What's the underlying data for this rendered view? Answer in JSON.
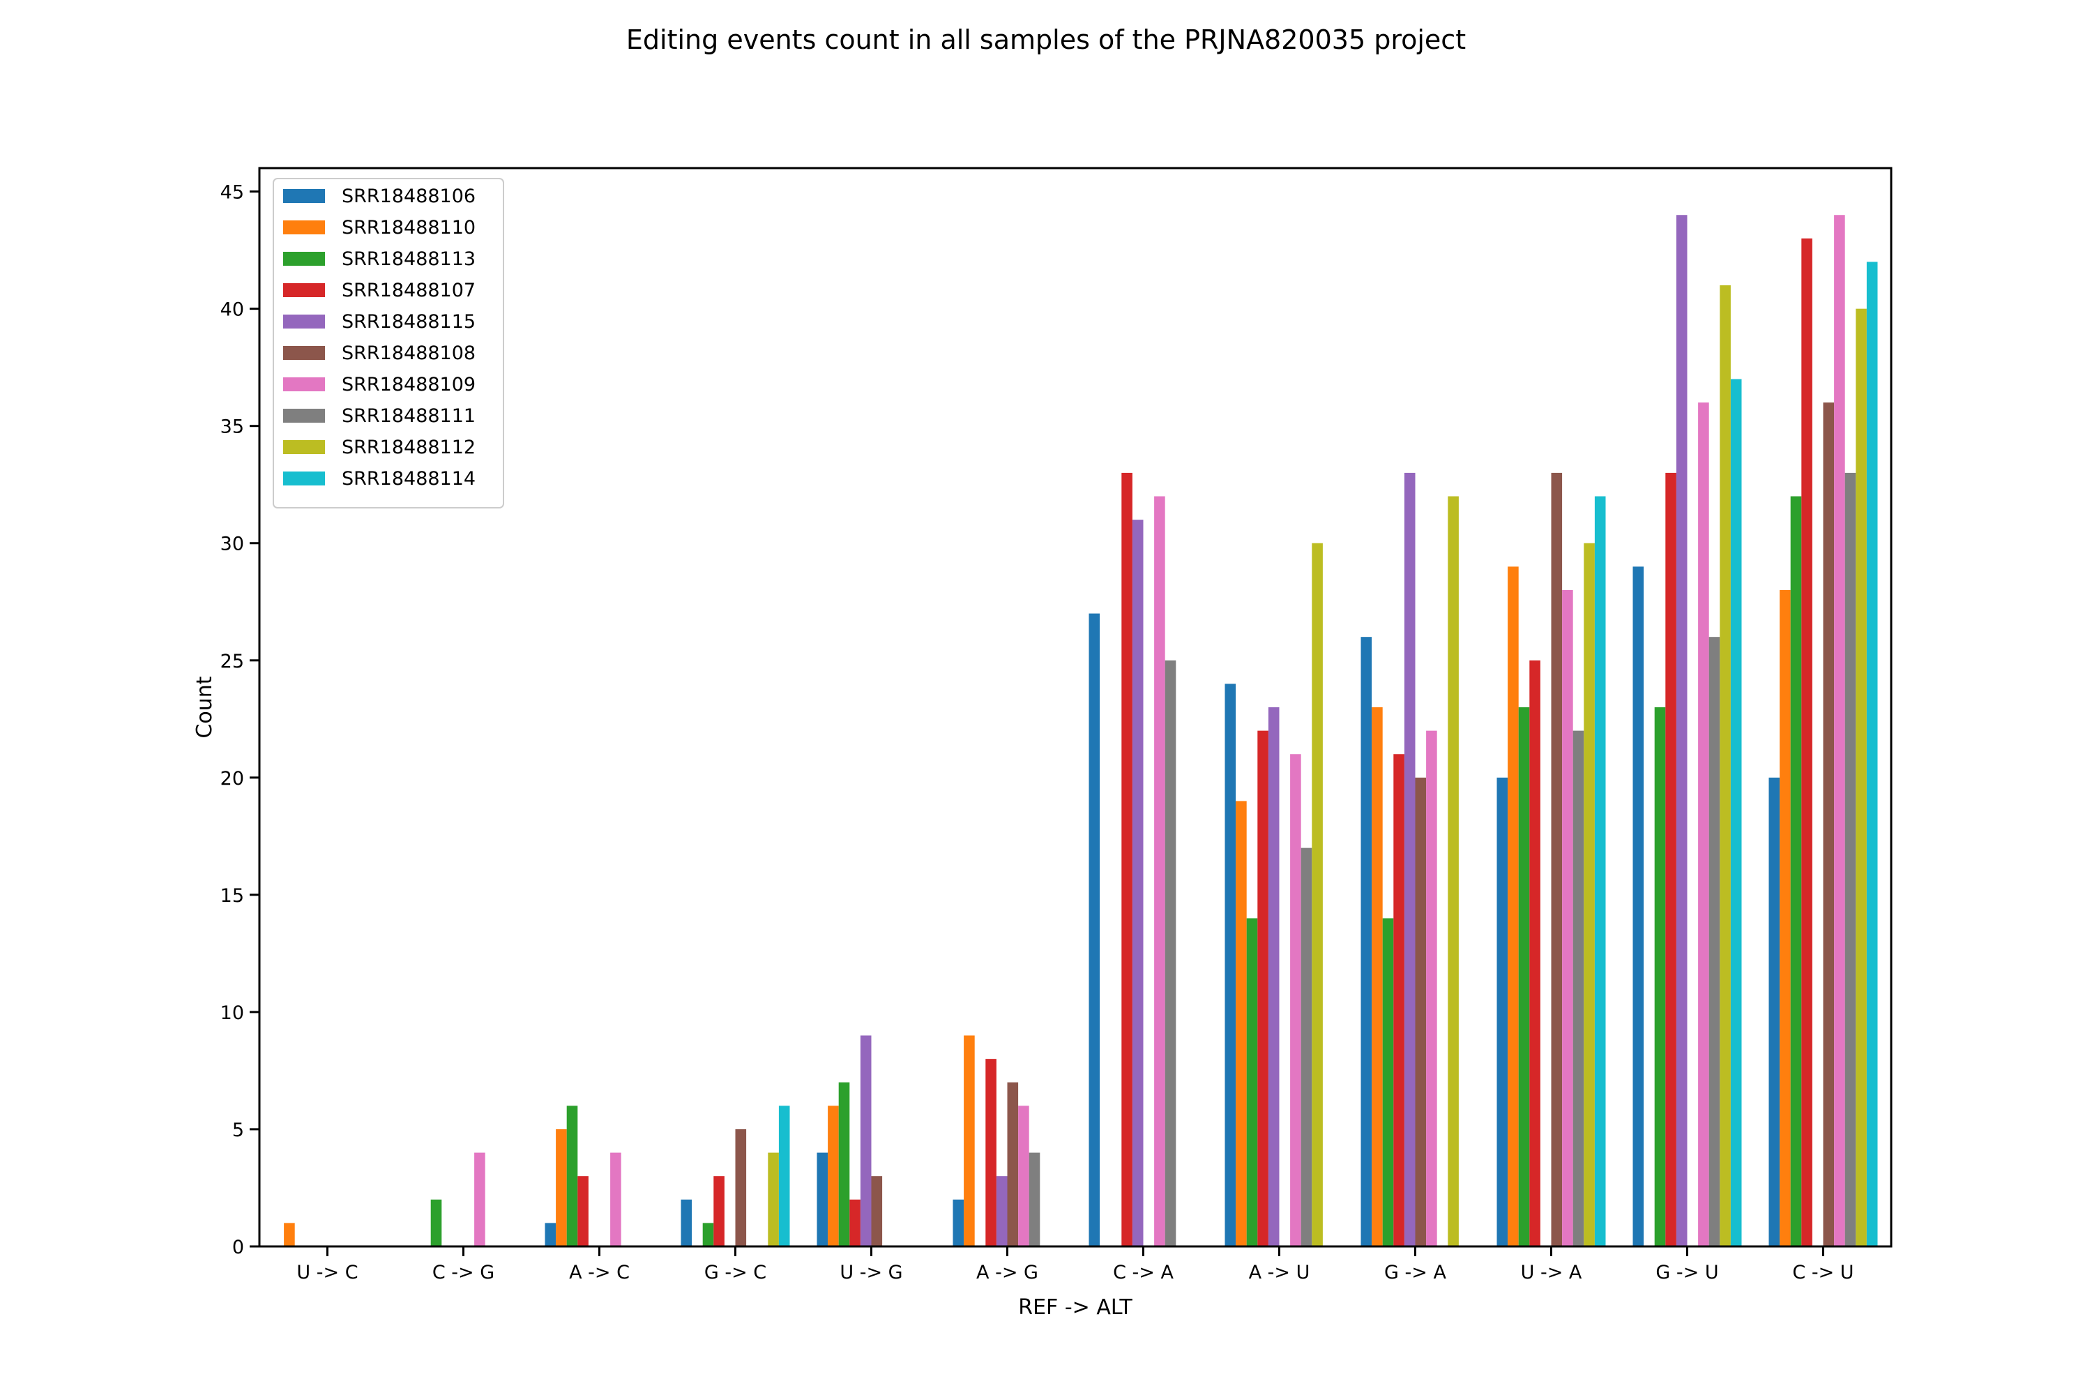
{
  "chart_data": {
    "type": "bar",
    "title": "Editing events count in all samples of the PRJNA820035 project",
    "xlabel": "REF -> ALT",
    "ylabel": "Count",
    "ylim": [
      0,
      46
    ],
    "yticks": [
      0,
      5,
      10,
      15,
      20,
      25,
      30,
      35,
      40,
      45
    ],
    "legend_position": "top-left",
    "grid": false,
    "categories": [
      "U -> C",
      "C -> G",
      "A -> C",
      "G -> C",
      "U -> G",
      "A -> G",
      "C -> A",
      "A -> U",
      "G -> A",
      "U -> A",
      "G -> U",
      "C -> U"
    ],
    "series": [
      {
        "name": "SRR18488106",
        "color": "#1f77b4",
        "values": [
          0,
          0,
          1,
          2,
          4,
          2,
          27,
          24,
          26,
          20,
          29,
          20
        ]
      },
      {
        "name": "SRR18488110",
        "color": "#ff7f0e",
        "values": [
          1,
          0,
          5,
          0,
          6,
          9,
          0,
          19,
          23,
          29,
          0,
          28
        ]
      },
      {
        "name": "SRR18488113",
        "color": "#2ca02c",
        "values": [
          0,
          2,
          6,
          1,
          7,
          0,
          0,
          14,
          14,
          23,
          23,
          32
        ]
      },
      {
        "name": "SRR18488107",
        "color": "#d62728",
        "values": [
          0,
          0,
          3,
          3,
          2,
          8,
          33,
          22,
          21,
          25,
          33,
          43
        ]
      },
      {
        "name": "SRR18488115",
        "color": "#9467bd",
        "values": [
          0,
          0,
          0,
          0,
          9,
          3,
          31,
          23,
          33,
          0,
          44,
          0
        ]
      },
      {
        "name": "SRR18488108",
        "color": "#8c564b",
        "values": [
          0,
          0,
          0,
          5,
          3,
          7,
          0,
          0,
          20,
          33,
          0,
          36
        ]
      },
      {
        "name": "SRR18488109",
        "color": "#e377c2",
        "values": [
          0,
          4,
          4,
          0,
          0,
          6,
          32,
          21,
          22,
          28,
          36,
          44
        ]
      },
      {
        "name": "SRR18488111",
        "color": "#7f7f7f",
        "values": [
          0,
          0,
          0,
          0,
          0,
          4,
          25,
          17,
          0,
          22,
          26,
          33
        ]
      },
      {
        "name": "SRR18488112",
        "color": "#bcbd22",
        "values": [
          0,
          0,
          0,
          4,
          0,
          0,
          0,
          30,
          32,
          30,
          41,
          40
        ]
      },
      {
        "name": "SRR18488114",
        "color": "#17becf",
        "values": [
          0,
          0,
          0,
          6,
          0,
          0,
          0,
          0,
          0,
          32,
          37,
          42
        ]
      }
    ]
  }
}
